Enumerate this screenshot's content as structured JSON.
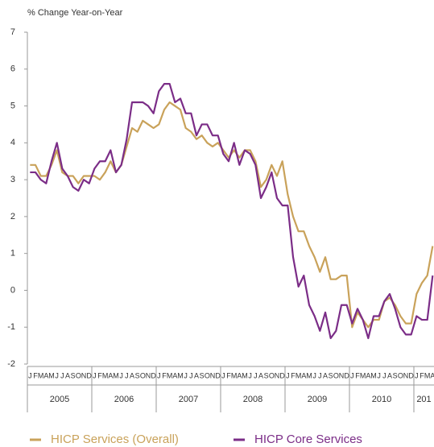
{
  "chart_data": {
    "type": "line",
    "title": "% Change Year-on-Year",
    "categories": [
      "J",
      "F",
      "M",
      "A",
      "M",
      "J",
      "J",
      "A",
      "S",
      "O",
      "N",
      "D",
      "J",
      "F",
      "M",
      "A",
      "M",
      "J",
      "J",
      "A",
      "S",
      "O",
      "N",
      "D",
      "J",
      "F",
      "M",
      "A",
      "M",
      "J",
      "J",
      "A",
      "S",
      "O",
      "N",
      "D",
      "J",
      "F",
      "M",
      "A",
      "M",
      "J",
      "J",
      "A",
      "S",
      "O",
      "N",
      "D",
      "J",
      "F",
      "M",
      "A",
      "M",
      "J",
      "J",
      "A",
      "S",
      "O",
      "N",
      "D",
      "J",
      "F",
      "M",
      "A",
      "M",
      "J",
      "J",
      "A",
      "S",
      "O",
      "N",
      "D",
      "J",
      "F",
      "M",
      "A"
    ],
    "years": [
      "2005",
      "2006",
      "2007",
      "2008",
      "2009",
      "2010",
      "201"
    ],
    "series": [
      {
        "name": "HICP Services (Overall)",
        "color": "#c9a25a",
        "values": [
          3.4,
          3.4,
          3.1,
          3.1,
          3.4,
          3.8,
          3.2,
          3.1,
          3.1,
          2.9,
          3.1,
          3.1,
          3.1,
          3.0,
          3.2,
          3.5,
          3.2,
          3.4,
          3.9,
          4.4,
          4.3,
          4.6,
          4.5,
          4.4,
          4.5,
          4.9,
          5.1,
          5.0,
          4.9,
          4.4,
          4.3,
          4.1,
          4.2,
          4.0,
          3.9,
          4.0,
          3.8,
          3.6,
          3.8,
          3.6,
          3.8,
          3.8,
          3.5,
          2.8,
          3.0,
          3.4,
          3.1,
          3.5,
          2.6,
          2.0,
          1.6,
          1.6,
          1.2,
          0.9,
          0.5,
          0.9,
          0.3,
          0.3,
          0.4,
          0.4,
          -1.0,
          -0.6,
          -0.8,
          -1.0,
          -0.8,
          -0.8,
          -0.3,
          -0.2,
          -0.4,
          -0.7,
          -0.9,
          -0.9,
          -0.1,
          0.2,
          0.4,
          1.2
        ]
      },
      {
        "name": "HICP Core Services",
        "color": "#7b2d87",
        "values": [
          3.2,
          3.2,
          3.0,
          2.9,
          3.5,
          4.0,
          3.3,
          3.1,
          2.8,
          2.7,
          3.0,
          2.9,
          3.3,
          3.5,
          3.5,
          3.8,
          3.2,
          3.4,
          4.1,
          5.1,
          5.1,
          5.1,
          5.0,
          4.8,
          5.4,
          5.6,
          5.6,
          5.1,
          5.2,
          4.8,
          4.8,
          4.2,
          4.5,
          4.5,
          4.2,
          4.2,
          3.7,
          3.5,
          4.0,
          3.4,
          3.8,
          3.7,
          3.4,
          2.5,
          2.8,
          3.2,
          2.5,
          2.3,
          2.3,
          0.9,
          0.1,
          0.4,
          -0.4,
          -0.7,
          -1.1,
          -0.6,
          -1.3,
          -1.1,
          -0.4,
          -0.4,
          -0.9,
          -0.5,
          -0.8,
          -1.3,
          -0.7,
          -0.7,
          -0.3,
          -0.1,
          -0.5,
          -1.0,
          -1.2,
          -1.2,
          -0.7,
          -0.8,
          -0.8,
          0.4
        ]
      }
    ],
    "ylim": [
      -2,
      7
    ],
    "yticks": [
      -2,
      -1,
      0,
      1,
      2,
      3,
      4,
      5,
      6,
      7
    ],
    "grid": false,
    "legend": "bottom"
  }
}
